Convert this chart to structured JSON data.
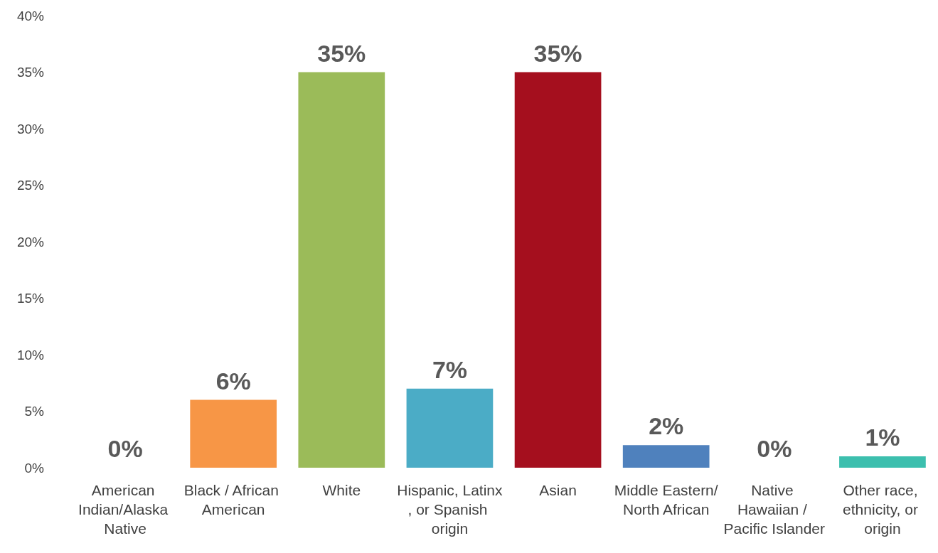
{
  "chart_data": {
    "type": "bar",
    "categories": [
      "American Indian/Alaska Native",
      "Black / African American",
      "White",
      "Hispanic, Latinx, or Spanish origin",
      "Asian",
      "Middle Eastern/North African",
      "Native Hawaiian / Pacific Islander",
      "Other race, ethnicity, or origin"
    ],
    "values": [
      0,
      6,
      35,
      7,
      35,
      2,
      0,
      1
    ],
    "colors": [
      "#4f81bd",
      "#f79646",
      "#9bbb59",
      "#4bacc6",
      "#a50f1e",
      "#4f81bd",
      "#4f81bd",
      "#3cbfae"
    ],
    "value_labels": [
      "0%",
      "6%",
      "35%",
      "7%",
      "35%",
      "2%",
      "0%",
      "1%"
    ],
    "ylim": [
      0,
      40
    ],
    "yticks": [
      {
        "value": 0,
        "label": "0%"
      },
      {
        "value": 5,
        "label": "5%"
      },
      {
        "value": 10,
        "label": "10%"
      },
      {
        "value": 15,
        "label": "15%"
      },
      {
        "value": 20,
        "label": "20%"
      },
      {
        "value": 25,
        "label": "25%"
      },
      {
        "value": 30,
        "label": "30%"
      },
      {
        "value": 35,
        "label": "35%"
      },
      {
        "value": 40,
        "label": "40%"
      }
    ],
    "grid": false
  }
}
